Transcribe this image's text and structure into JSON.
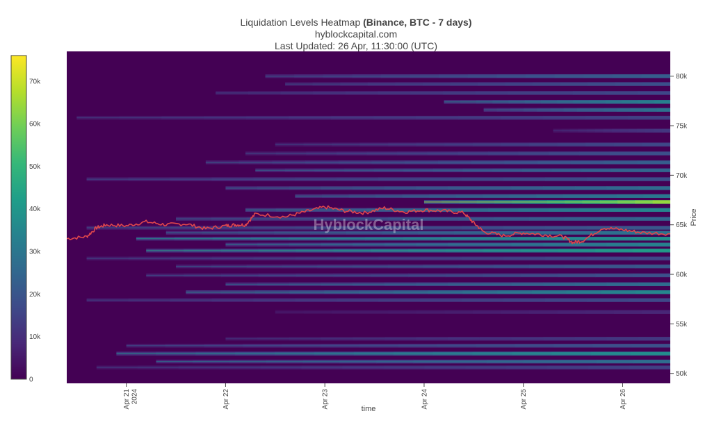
{
  "header": {
    "title_prefix": "Liquidation Levels Heatmap ",
    "title_bold": "(Binance, BTC - 7 days)",
    "source": "hyblockcapital.com",
    "updated": "Last Updated: 26 Apr, 11:30:00 (UTC)"
  },
  "watermark": "HyblockCapital",
  "colors": {
    "background": "#440154",
    "price_line": "#e0474c",
    "bright_band": "#c8e020",
    "scale": [
      "#440154",
      "#482878",
      "#3e4a89",
      "#31688e",
      "#26828e",
      "#1f9e89",
      "#35b779",
      "#6ece58",
      "#b5de2b",
      "#fde725"
    ]
  },
  "chart_data": {
    "type": "heatmap",
    "title": "Liquidation Levels Heatmap (Binance, BTC - 7 days)",
    "xlabel": "time",
    "ylabel": "Price",
    "x_ticks": [
      {
        "label": "Apr 21",
        "sub": "2024",
        "day": 21
      },
      {
        "label": "Apr 22",
        "sub": "",
        "day": 22
      },
      {
        "label": "Apr 23",
        "sub": "",
        "day": 23
      },
      {
        "label": "Apr 24",
        "sub": "",
        "day": 24
      },
      {
        "label": "Apr 25",
        "sub": "",
        "day": 25
      },
      {
        "label": "Apr 26",
        "sub": "",
        "day": 26
      }
    ],
    "xlim": [
      20.4,
      26.48
    ],
    "ylim": [
      49000,
      82500
    ],
    "y_ticks": [
      {
        "value": 50000,
        "label": "50k"
      },
      {
        "value": 55000,
        "label": "55k"
      },
      {
        "value": 60000,
        "label": "60k"
      },
      {
        "value": 65000,
        "label": "65k"
      },
      {
        "value": 70000,
        "label": "70k"
      },
      {
        "value": 75000,
        "label": "75k"
      },
      {
        "value": 80000,
        "label": "80k"
      }
    ],
    "colorbar": {
      "range": [
        0,
        76000
      ],
      "ticks": [
        {
          "value": 0,
          "label": "0"
        },
        {
          "value": 10000,
          "label": "10k"
        },
        {
          "value": 20000,
          "label": "20k"
        },
        {
          "value": 30000,
          "label": "30k"
        },
        {
          "value": 40000,
          "label": "40k"
        },
        {
          "value": 50000,
          "label": "50k"
        },
        {
          "value": 60000,
          "label": "60k"
        },
        {
          "value": 70000,
          "label": "70k"
        }
      ]
    },
    "liquidation_bands": [
      {
        "price": 80000,
        "start": 22.4,
        "peak": 22000
      },
      {
        "price": 79200,
        "start": 22.6,
        "peak": 18000
      },
      {
        "price": 78300,
        "start": 21.9,
        "peak": 16000
      },
      {
        "price": 77400,
        "start": 24.2,
        "peak": 32000
      },
      {
        "price": 76600,
        "start": 24.6,
        "peak": 28000
      },
      {
        "price": 75800,
        "start": 20.5,
        "peak": 14000
      },
      {
        "price": 74500,
        "start": 25.3,
        "peak": 12000
      },
      {
        "price": 73100,
        "start": 22.5,
        "peak": 16000
      },
      {
        "price": 72200,
        "start": 22.2,
        "peak": 18000
      },
      {
        "price": 71300,
        "start": 21.8,
        "peak": 22000
      },
      {
        "price": 70500,
        "start": 22.3,
        "peak": 24000
      },
      {
        "price": 69600,
        "start": 20.6,
        "peak": 18000
      },
      {
        "price": 68700,
        "start": 22.0,
        "peak": 26000
      },
      {
        "price": 67900,
        "start": 22.7,
        "peak": 30000
      },
      {
        "price": 67300,
        "start": 24.0,
        "peak": 62000
      },
      {
        "price": 66500,
        "start": 22.2,
        "peak": 34000
      },
      {
        "price": 65600,
        "start": 21.5,
        "peak": 24000
      },
      {
        "price": 64700,
        "start": 20.6,
        "peak": 20000
      },
      {
        "price": 64200,
        "start": 21.4,
        "peak": 28000
      },
      {
        "price": 63600,
        "start": 21.1,
        "peak": 36000
      },
      {
        "price": 63000,
        "start": 22.0,
        "peak": 32000
      },
      {
        "price": 62400,
        "start": 21.2,
        "peak": 40000
      },
      {
        "price": 61600,
        "start": 20.6,
        "peak": 16000
      },
      {
        "price": 60800,
        "start": 21.5,
        "peak": 20000
      },
      {
        "price": 59900,
        "start": 21.2,
        "peak": 18000
      },
      {
        "price": 59000,
        "start": 22.0,
        "peak": 26000
      },
      {
        "price": 58200,
        "start": 21.6,
        "peak": 34000
      },
      {
        "price": 57400,
        "start": 20.6,
        "peak": 16000
      },
      {
        "price": 56200,
        "start": 22.5,
        "peak": 8000
      },
      {
        "price": 53500,
        "start": 22.0,
        "peak": 12000
      },
      {
        "price": 52800,
        "start": 21.0,
        "peak": 18000
      },
      {
        "price": 52000,
        "start": 20.9,
        "peak": 36000
      },
      {
        "price": 51200,
        "start": 21.3,
        "peak": 26000
      },
      {
        "price": 50600,
        "start": 20.7,
        "peak": 14000
      }
    ],
    "price_series": {
      "x": [
        20.4,
        20.6,
        20.7,
        20.8,
        21.0,
        21.2,
        21.4,
        21.6,
        21.8,
        22.0,
        22.1,
        22.2,
        22.3,
        22.6,
        22.8,
        23.0,
        23.2,
        23.4,
        23.6,
        23.8,
        24.0,
        24.2,
        24.4,
        24.5,
        24.6,
        24.8,
        25.0,
        25.2,
        25.4,
        25.5,
        25.6,
        25.8,
        26.0,
        26.2,
        26.48
      ],
      "y": [
        63600,
        63800,
        64700,
        65000,
        64900,
        65300,
        65000,
        65100,
        64600,
        64900,
        65000,
        65000,
        66100,
        65800,
        66300,
        66800,
        66400,
        66200,
        66700,
        66300,
        66500,
        66400,
        66200,
        65200,
        64300,
        63900,
        64200,
        64000,
        63800,
        63200,
        63400,
        64700,
        64500,
        64200,
        64100
      ]
    }
  }
}
